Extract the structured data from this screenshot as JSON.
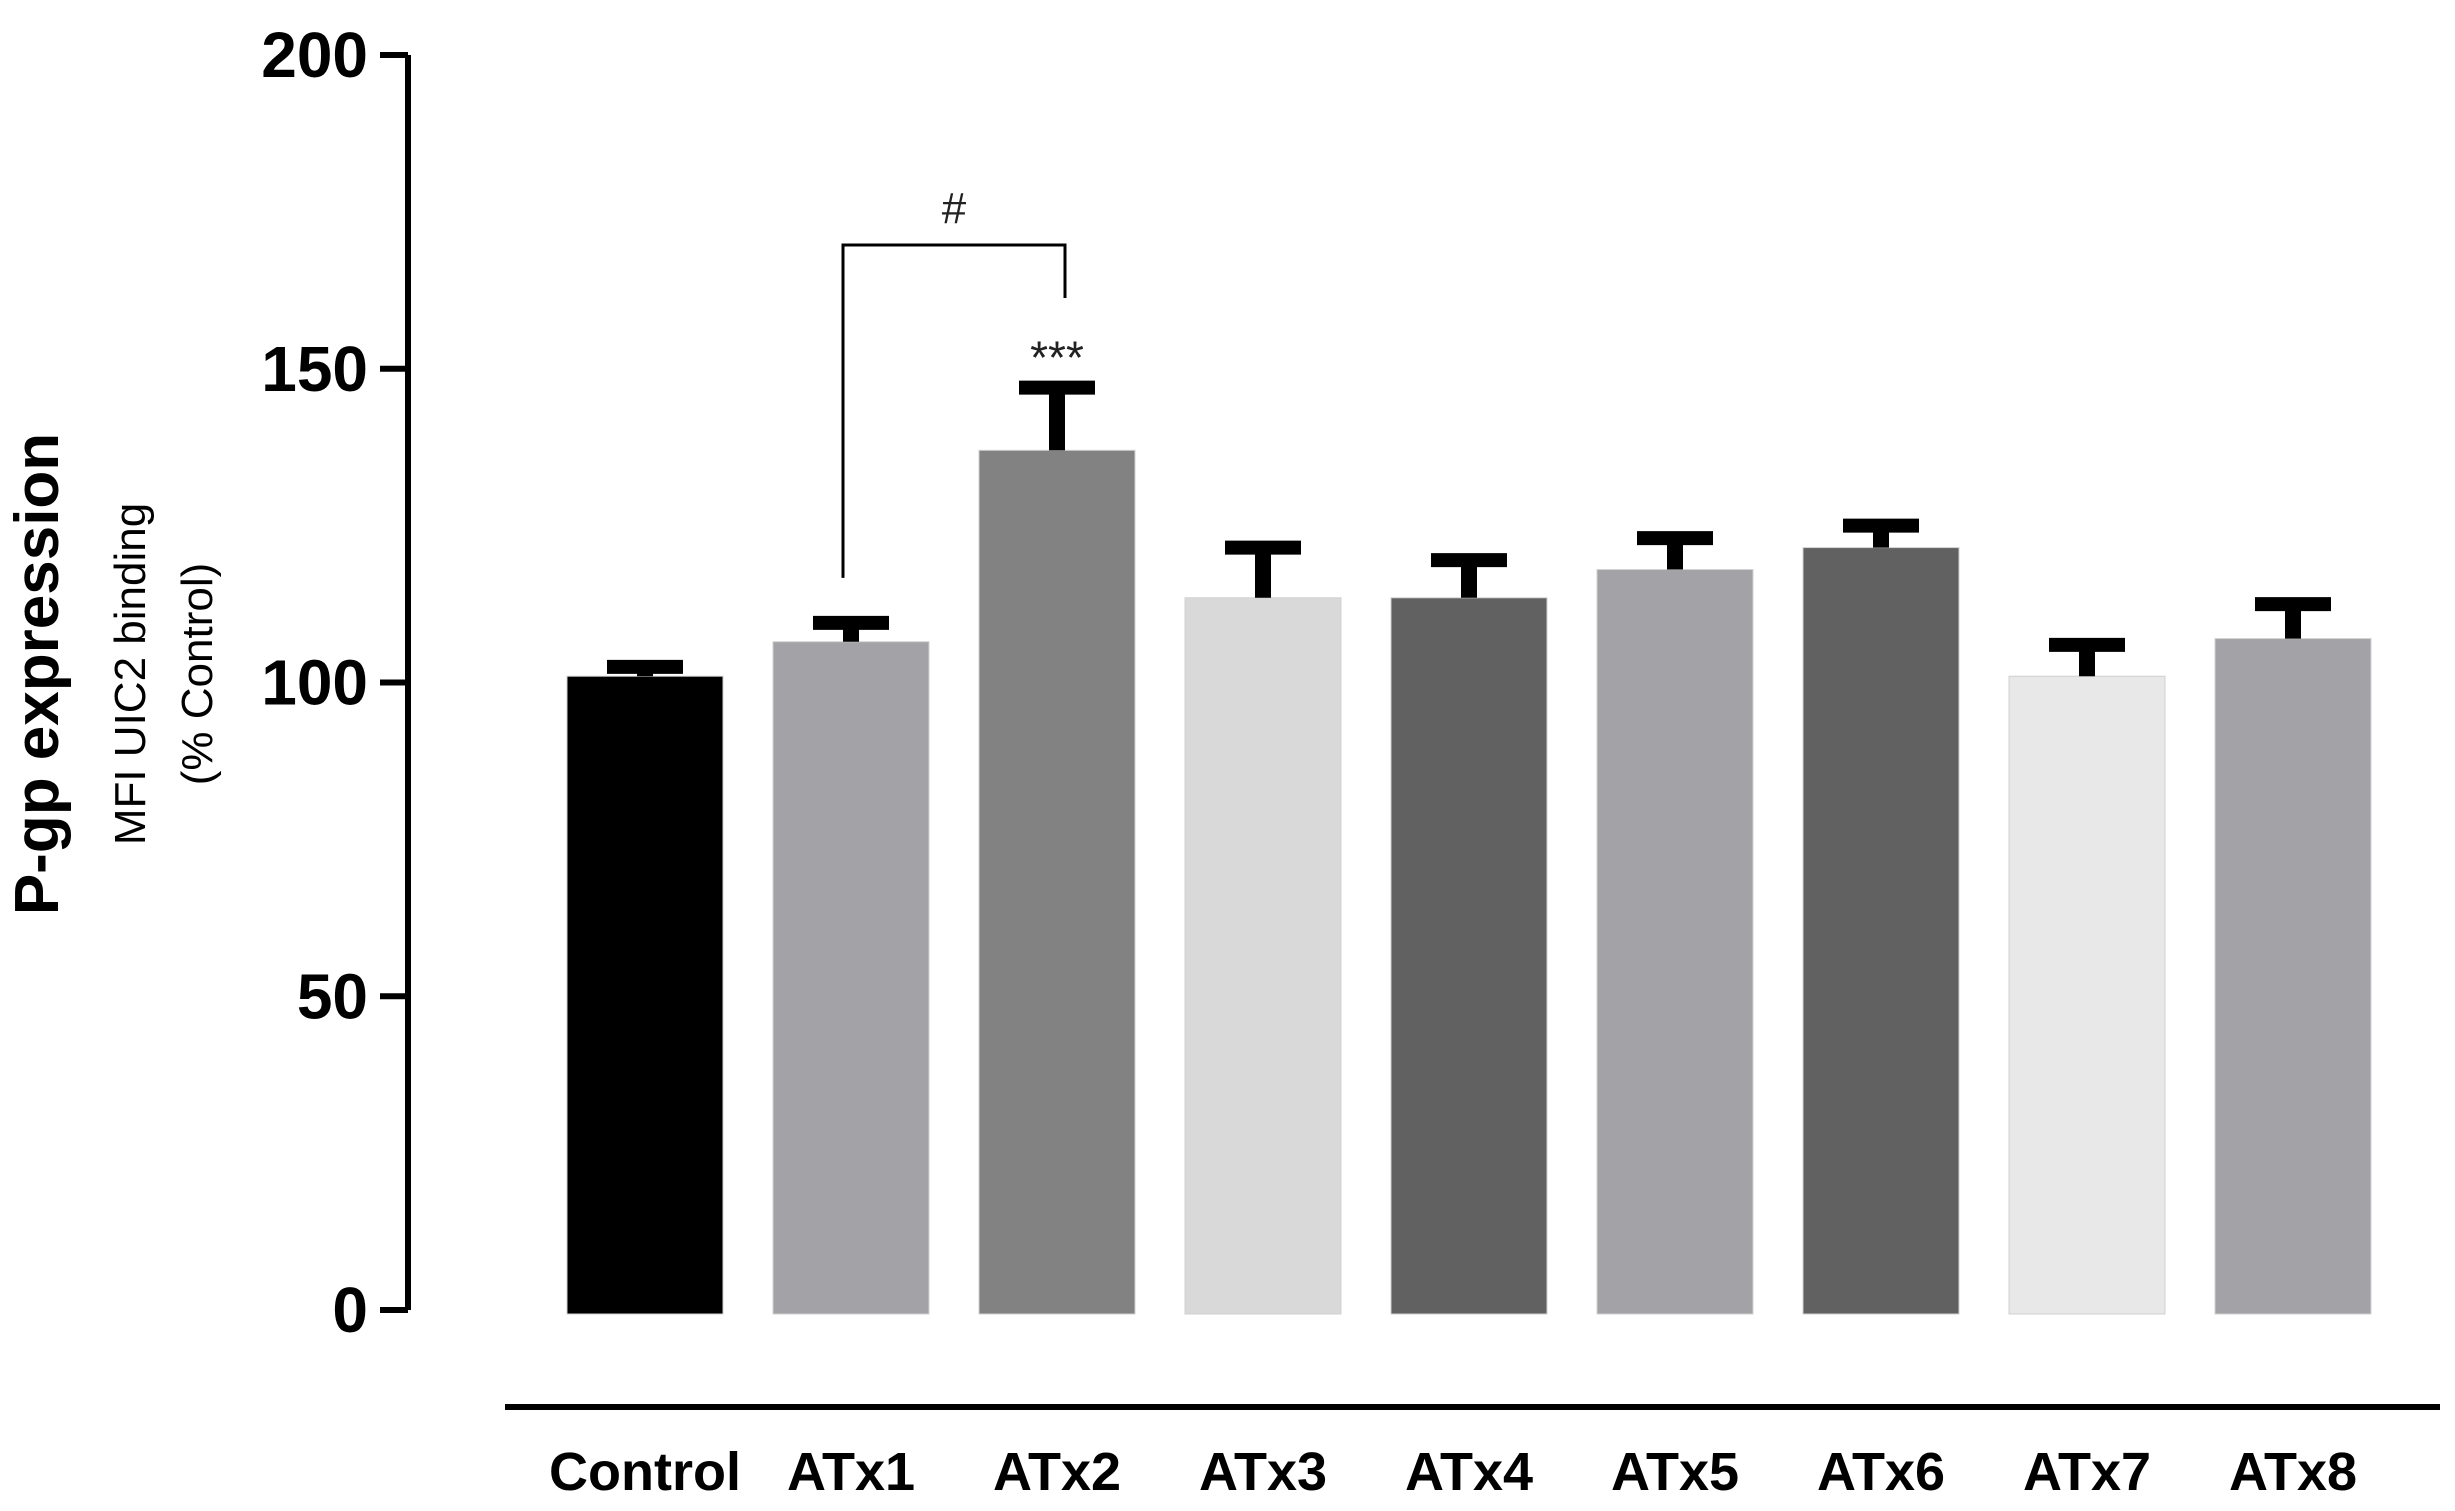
{
  "chart_data": {
    "type": "bar",
    "title": "",
    "ylabel_main": "P-gp expression",
    "ylabel_sub1": "MFI UIC2 binding",
    "ylabel_sub2": "(%  Control)",
    "xlabel": "",
    "ylim": [
      0,
      200
    ],
    "yticks": [
      0,
      50,
      100,
      150,
      200
    ],
    "categories": [
      "Control",
      "ATx1",
      "ATx2",
      "ATx3",
      "ATx4",
      "ATx5",
      "ATx6",
      "ATx7",
      "ATx8"
    ],
    "values": [
      101,
      106.5,
      137,
      113.5,
      113.5,
      118,
      121.5,
      101,
      107
    ],
    "errors": [
      1.5,
      3,
      10,
      8,
      6,
      5,
      3.5,
      5,
      5.5
    ],
    "colors": [
      "#000000",
      "#a3a2a7",
      "#828282",
      "#d9d9d9",
      "#616161",
      "#a3a2a7",
      "#616161",
      "#e8e8e8",
      "#a3a2a7"
    ],
    "significance": [
      {
        "category": "ATx2",
        "label": "***"
      }
    ],
    "brackets": [
      {
        "from": "ATx1",
        "to": "ATx2",
        "label": "#"
      }
    ],
    "grid": false,
    "legend": "none"
  }
}
